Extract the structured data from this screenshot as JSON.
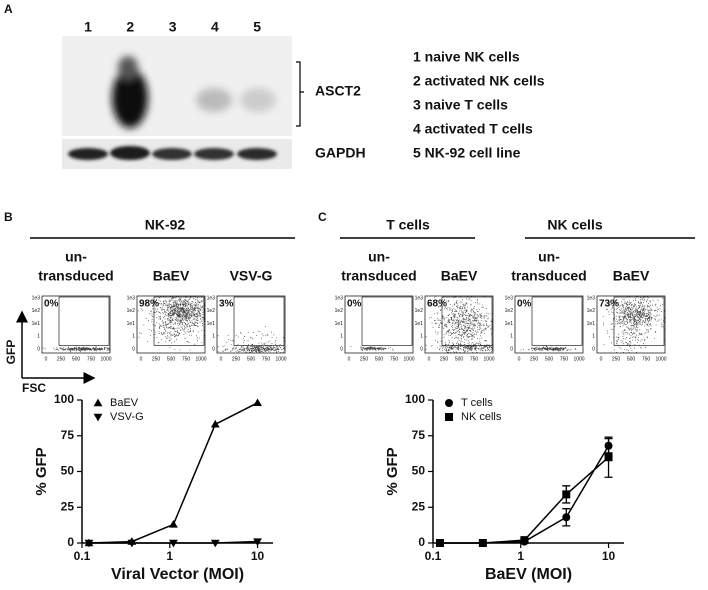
{
  "panel_a": {
    "label": "A",
    "lanes": [
      "1",
      "2",
      "3",
      "4",
      "5"
    ],
    "bands": [
      "ASCT2",
      "GAPDH"
    ],
    "legend": [
      "1 naive NK cells",
      "2 activated NK cells",
      "3 naive T cells",
      "4 activated T cells",
      "5 NK-92 cell line"
    ]
  },
  "panel_b": {
    "label": "B",
    "header": "NK-92",
    "columns": [
      {
        "title": [
          "un-",
          "transduced"
        ],
        "percent": "0%"
      },
      {
        "title": [
          "BaEV"
        ],
        "percent": "98%"
      },
      {
        "title": [
          "VSV-G"
        ],
        "percent": "3%"
      }
    ],
    "y_axis": "GFP",
    "x_axis": "FSC"
  },
  "panel_c": {
    "label": "C",
    "groups": [
      {
        "header": "T cells",
        "columns": [
          {
            "title": [
              "un-",
              "transduced"
            ],
            "percent": "0%"
          },
          {
            "title": [
              "BaEV"
            ],
            "percent": "68%"
          }
        ]
      },
      {
        "header": "NK cells",
        "columns": [
          {
            "title": [
              "un-",
              "transduced"
            ],
            "percent": "0%"
          },
          {
            "title": [
              "BaEV"
            ],
            "percent": "73%"
          }
        ]
      }
    ]
  },
  "flow_axes": {
    "yticks": [
      "1e3",
      "1e2",
      "1e1",
      "1",
      "0"
    ],
    "xticks": [
      "0",
      "250",
      "500",
      "750",
      "1000"
    ]
  },
  "chart_data": [
    {
      "type": "line",
      "xlabel": "Viral Vector (MOI)",
      "ylabel": "% GFP",
      "xscale": "log",
      "xlim": [
        0.1,
        15
      ],
      "xticks": [
        0.1,
        1,
        10
      ],
      "ylim": [
        0,
        100
      ],
      "yticks": [
        0,
        25,
        50,
        75,
        100
      ],
      "legend": "upper left",
      "x": [
        0.12,
        0.37,
        1.1,
        3.3,
        10
      ],
      "series": [
        {
          "name": "BaEV",
          "color": "#000000",
          "marker": "triangle-up",
          "values": [
            0,
            1,
            13,
            83,
            98
          ]
        },
        {
          "name": "VSV-G",
          "color": "#000000",
          "marker": "triangle-down",
          "values": [
            0,
            0,
            0,
            0,
            1
          ]
        }
      ]
    },
    {
      "type": "line",
      "xlabel": "BaEV (MOI)",
      "ylabel": "% GFP",
      "xscale": "log",
      "xlim": [
        0.1,
        15
      ],
      "xticks": [
        0.1,
        1,
        10
      ],
      "ylim": [
        0,
        100
      ],
      "yticks": [
        0,
        25,
        50,
        75,
        100
      ],
      "legend": "upper left",
      "x": [
        0.12,
        0.37,
        1.1,
        3.3,
        10
      ],
      "series": [
        {
          "name": "T cells",
          "color": "#000000",
          "marker": "circle",
          "values": [
            0,
            0,
            1,
            18,
            68
          ],
          "errors": [
            0,
            0,
            1,
            6,
            5
          ]
        },
        {
          "name": "NK cells",
          "color": "#000000",
          "marker": "square",
          "values": [
            0,
            0,
            2,
            34,
            60
          ],
          "errors": [
            0,
            0,
            1,
            6,
            14
          ]
        }
      ]
    }
  ]
}
